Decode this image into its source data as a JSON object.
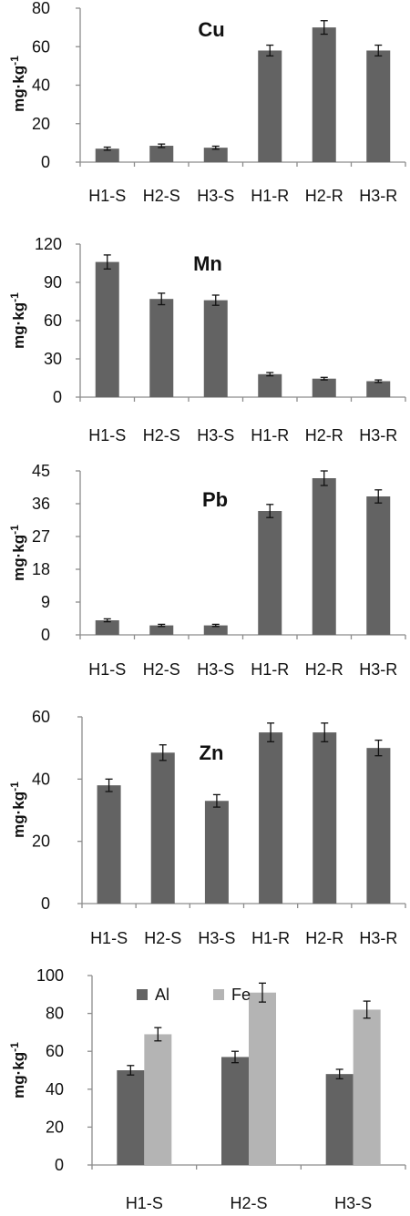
{
  "colors": {
    "bar_dark": "#636363",
    "bar_light": "#b4b4b4",
    "axis": "#8c8c8c",
    "text": "#111111"
  },
  "chart_data": [
    {
      "type": "bar",
      "title": "Cu",
      "ylabel": "mg·kg-1",
      "categories": [
        "H1-S",
        "H2-S",
        "H3-S",
        "H1-R",
        "H2-R",
        "H3-R"
      ],
      "series": [
        {
          "values": [
            7,
            8.5,
            7.5,
            58,
            70,
            58
          ],
          "errors": [
            0.8,
            0.9,
            0.8,
            2.8,
            3.5,
            2.8
          ]
        }
      ],
      "ylim": [
        0,
        80
      ],
      "yticks": [
        0,
        20,
        40,
        60,
        80
      ],
      "grid": false
    },
    {
      "type": "bar",
      "title": "Mn",
      "ylabel": "mg·kg-1",
      "categories": [
        "H1-S",
        "H2-S",
        "H3-S",
        "H1-R",
        "H2-R",
        "H3-R"
      ],
      "series": [
        {
          "values": [
            106,
            77,
            76,
            18,
            14.5,
            12.5
          ],
          "errors": [
            5.5,
            4.5,
            4,
            1.3,
            1,
            1
          ]
        }
      ],
      "ylim": [
        0,
        120
      ],
      "yticks": [
        0,
        30,
        60,
        90,
        120
      ],
      "grid": false
    },
    {
      "type": "bar",
      "title": "Pb",
      "ylabel": "mg·kg-1",
      "categories": [
        "H1-S",
        "H2-S",
        "H3-S",
        "H1-R",
        "H2-R",
        "H3-R"
      ],
      "series": [
        {
          "values": [
            4,
            2.6,
            2.6,
            34,
            43,
            38
          ],
          "errors": [
            0.4,
            0.3,
            0.3,
            1.8,
            2,
            1.8
          ]
        }
      ],
      "ylim": [
        0,
        45
      ],
      "yticks": [
        0,
        9,
        18,
        27,
        36,
        45
      ],
      "grid": false
    },
    {
      "type": "bar",
      "title": "Zn",
      "ylabel": "mg·kg-1",
      "categories": [
        "H1-S",
        "H2-S",
        "H3-S",
        "H1-R",
        "H2-R",
        "H3-R"
      ],
      "series": [
        {
          "values": [
            38,
            48.5,
            33,
            55,
            55,
            50
          ],
          "errors": [
            2,
            2.5,
            2,
            3,
            3,
            2.5
          ]
        }
      ],
      "ylim": [
        0,
        60
      ],
      "yticks": [
        0,
        20,
        40,
        60
      ],
      "grid": false
    },
    {
      "type": "bar",
      "title": "",
      "ylabel": "mg·kg-1",
      "categories": [
        "H1-S",
        "H2-S",
        "H3-S"
      ],
      "series": [
        {
          "name": "Al",
          "values": [
            50,
            57,
            48
          ],
          "errors": [
            2.5,
            3,
            2.5
          ]
        },
        {
          "name": "Fe",
          "values": [
            69,
            91,
            82
          ],
          "errors": [
            3.5,
            5,
            4.5
          ]
        }
      ],
      "ylim": [
        0,
        100
      ],
      "yticks": [
        0,
        20,
        40,
        60,
        80,
        100
      ],
      "legend": "top-left",
      "grid": false
    }
  ]
}
